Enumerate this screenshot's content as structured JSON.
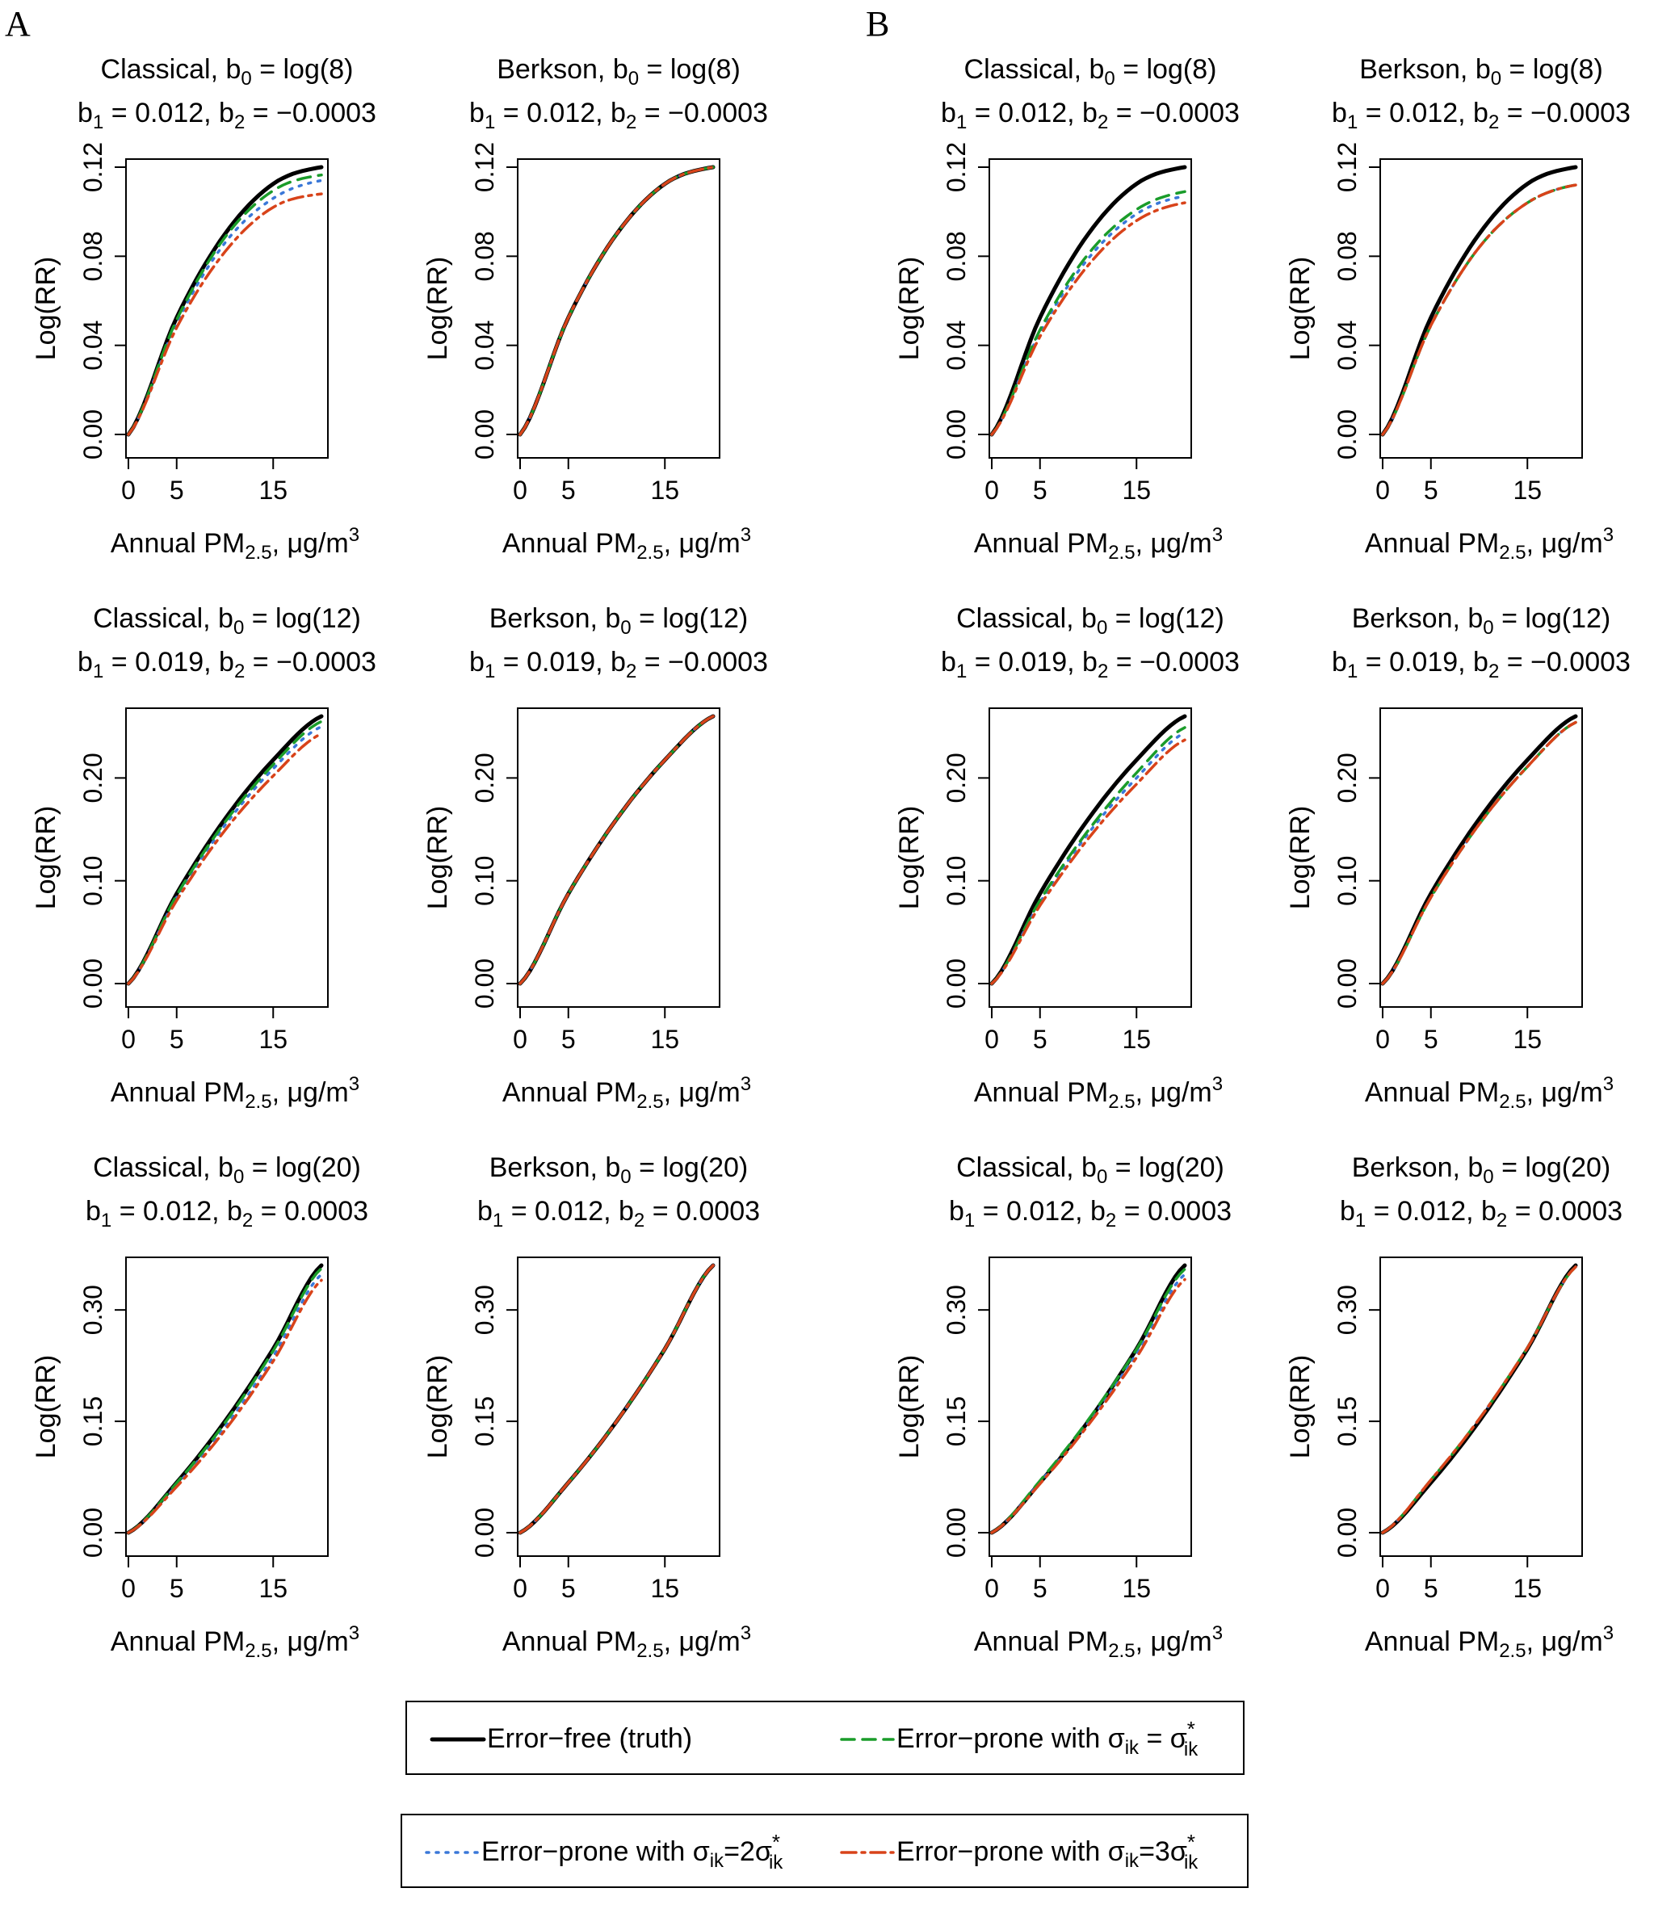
{
  "figure": {
    "panel_letters": [
      "A",
      "B"
    ],
    "xlabel": {
      "main": "Annual PM",
      "sub": "2.5",
      "unit": ", μg/m",
      "sup": "3"
    },
    "ylabel": "Log(RR)"
  },
  "legend": [
    {
      "key": "truth",
      "label": "Error−free (truth)",
      "color": "#000000"
    },
    {
      "key": "sigma1",
      "label": "Error−prone with σ",
      "sub": "ik",
      "rel": " = σ",
      "sup": "*",
      "sub2": "ik",
      "color": "#1a9c2a"
    },
    {
      "key": "sigma2",
      "label": "Error−prone with σ",
      "sub": "ik",
      "rel": "=2σ",
      "sup": "*",
      "sub2": "ik",
      "color": "#3a78d8"
    },
    {
      "key": "sigma3",
      "label": "Error−prone with σ",
      "sub": "ik",
      "rel": "=3σ",
      "sup": "*",
      "sub2": "ik",
      "color": "#d8431a"
    }
  ],
  "chart_data": [
    {
      "panel": "A",
      "type": "line",
      "title1": {
        "model": "Classical,",
        "b0": "log(8)"
      },
      "title2": {
        "b1": "0.012",
        "b2": "−0.0003"
      },
      "xticks": [
        "0",
        "5",
        "15"
      ],
      "yticks": [
        "0.00",
        "0.04",
        "0.08",
        "0.12"
      ],
      "xlim": [
        0,
        20
      ],
      "ylim": [
        0,
        0.12
      ],
      "series": [
        {
          "key": "truth",
          "x": [
            0,
            5,
            10,
            15,
            20
          ],
          "values": [
            0,
            0.0525,
            0.09,
            0.1125,
            0.12
          ]
        },
        {
          "key": "sigma1",
          "x": [
            0,
            5,
            10,
            15,
            20
          ],
          "values": [
            0,
            0.0515,
            0.0885,
            0.1095,
            0.1165
          ]
        },
        {
          "key": "sigma2",
          "x": [
            0,
            5,
            10,
            15,
            20
          ],
          "values": [
            0,
            0.05,
            0.086,
            0.106,
            0.114
          ]
        },
        {
          "key": "sigma3",
          "x": [
            0,
            5,
            10,
            15,
            20
          ],
          "values": [
            0,
            0.048,
            0.082,
            0.102,
            0.108
          ]
        }
      ]
    },
    {
      "panel": "A",
      "type": "line",
      "title1": {
        "model": "Berkson,",
        "b0": "log(8)"
      },
      "title2": {
        "b1": "0.012",
        "b2": "−0.0003"
      },
      "xticks": [
        "0",
        "5",
        "15"
      ],
      "yticks": [
        "0.00",
        "0.04",
        "0.08",
        "0.12"
      ],
      "xlim": [
        0,
        20
      ],
      "ylim": [
        0,
        0.12
      ],
      "series": [
        {
          "key": "truth",
          "x": [
            0,
            5,
            10,
            15,
            20
          ],
          "values": [
            0,
            0.0525,
            0.09,
            0.1125,
            0.12
          ]
        },
        {
          "key": "sigma1",
          "x": [
            0,
            5,
            10,
            15,
            20
          ],
          "values": [
            0,
            0.0525,
            0.09,
            0.1125,
            0.12
          ]
        },
        {
          "key": "sigma2",
          "x": [
            0,
            5,
            10,
            15,
            20
          ],
          "values": [
            0,
            0.0525,
            0.09,
            0.1125,
            0.12
          ]
        },
        {
          "key": "sigma3",
          "x": [
            0,
            5,
            10,
            15,
            20
          ],
          "values": [
            0,
            0.0525,
            0.09,
            0.1125,
            0.12
          ]
        }
      ]
    },
    {
      "panel": "B",
      "type": "line",
      "title1": {
        "model": "Classical,",
        "b0": "log(8)"
      },
      "title2": {
        "b1": "0.012",
        "b2": "−0.0003"
      },
      "xticks": [
        "0",
        "5",
        "15"
      ],
      "yticks": [
        "0.00",
        "0.04",
        "0.08",
        "0.12"
      ],
      "xlim": [
        0,
        20
      ],
      "ylim": [
        0,
        0.12
      ],
      "series": [
        {
          "key": "truth",
          "x": [
            0,
            5,
            10,
            15,
            20
          ],
          "values": [
            0,
            0.0525,
            0.09,
            0.1125,
            0.12
          ]
        },
        {
          "key": "sigma1",
          "x": [
            0,
            5,
            10,
            15,
            20
          ],
          "values": [
            0,
            0.047,
            0.081,
            0.101,
            0.109
          ]
        },
        {
          "key": "sigma2",
          "x": [
            0,
            5,
            10,
            15,
            20
          ],
          "values": [
            0,
            0.046,
            0.079,
            0.099,
            0.107
          ]
        },
        {
          "key": "sigma3",
          "x": [
            0,
            5,
            10,
            15,
            20
          ],
          "values": [
            0,
            0.044,
            0.076,
            0.096,
            0.104
          ]
        }
      ]
    },
    {
      "panel": "B",
      "type": "line",
      "title1": {
        "model": "Berkson,",
        "b0": "log(8)"
      },
      "title2": {
        "b1": "0.012",
        "b2": "−0.0003"
      },
      "xticks": [
        "0",
        "5",
        "15"
      ],
      "yticks": [
        "0.00",
        "0.04",
        "0.08",
        "0.12"
      ],
      "xlim": [
        0,
        20
      ],
      "ylim": [
        0,
        0.12
      ],
      "series": [
        {
          "key": "truth",
          "x": [
            0,
            5,
            10,
            15,
            20
          ],
          "values": [
            0,
            0.0525,
            0.09,
            0.1125,
            0.12
          ]
        },
        {
          "key": "sigma1",
          "x": [
            0,
            5,
            10,
            15,
            20
          ],
          "values": [
            0,
            0.049,
            0.084,
            0.104,
            0.112
          ]
        },
        {
          "key": "sigma2",
          "x": [
            0,
            5,
            10,
            15,
            20
          ],
          "values": [
            0,
            0.049,
            0.084,
            0.104,
            0.112
          ]
        },
        {
          "key": "sigma3",
          "x": [
            0,
            5,
            10,
            15,
            20
          ],
          "values": [
            0,
            0.049,
            0.084,
            0.104,
            0.112
          ]
        }
      ]
    },
    {
      "panel": "A",
      "type": "line",
      "title1": {
        "model": "Classical,",
        "b0": "log(12)"
      },
      "title2": {
        "b1": "0.019",
        "b2": "−0.0003"
      },
      "xticks": [
        "0",
        "5",
        "15"
      ],
      "yticks": [
        "0.00",
        "0.10",
        "0.20"
      ],
      "xlim": [
        0,
        20
      ],
      "ylim": [
        0,
        0.26
      ],
      "series": [
        {
          "key": "truth",
          "x": [
            0,
            5,
            10,
            15,
            20
          ],
          "values": [
            0,
            0.0875,
            0.16,
            0.2175,
            0.26
          ]
        },
        {
          "key": "sigma1",
          "x": [
            0,
            5,
            10,
            15,
            20
          ],
          "values": [
            0,
            0.086,
            0.157,
            0.213,
            0.255
          ]
        },
        {
          "key": "sigma2",
          "x": [
            0,
            5,
            10,
            15,
            20
          ],
          "values": [
            0,
            0.084,
            0.154,
            0.209,
            0.25
          ]
        },
        {
          "key": "sigma3",
          "x": [
            0,
            5,
            10,
            15,
            20
          ],
          "values": [
            0,
            0.081,
            0.149,
            0.202,
            0.243
          ]
        }
      ]
    },
    {
      "panel": "A",
      "type": "line",
      "title1": {
        "model": "Berkson,",
        "b0": "log(12)"
      },
      "title2": {
        "b1": "0.019",
        "b2": "−0.0003"
      },
      "xticks": [
        "0",
        "5",
        "15"
      ],
      "yticks": [
        "0.00",
        "0.10",
        "0.20"
      ],
      "xlim": [
        0,
        20
      ],
      "ylim": [
        0,
        0.26
      ],
      "series": [
        {
          "key": "truth",
          "x": [
            0,
            5,
            10,
            15,
            20
          ],
          "values": [
            0,
            0.0875,
            0.16,
            0.2175,
            0.26
          ]
        },
        {
          "key": "sigma1",
          "x": [
            0,
            5,
            10,
            15,
            20
          ],
          "values": [
            0,
            0.0875,
            0.16,
            0.2175,
            0.26
          ]
        },
        {
          "key": "sigma2",
          "x": [
            0,
            5,
            10,
            15,
            20
          ],
          "values": [
            0,
            0.0875,
            0.16,
            0.2175,
            0.26
          ]
        },
        {
          "key": "sigma3",
          "x": [
            0,
            5,
            10,
            15,
            20
          ],
          "values": [
            0,
            0.0875,
            0.16,
            0.2175,
            0.26
          ]
        }
      ]
    },
    {
      "panel": "B",
      "type": "line",
      "title1": {
        "model": "Classical,",
        "b0": "log(12)"
      },
      "title2": {
        "b1": "0.019",
        "b2": "−0.0003"
      },
      "xticks": [
        "0",
        "5",
        "15"
      ],
      "yticks": [
        "0.00",
        "0.10",
        "0.20"
      ],
      "xlim": [
        0,
        20
      ],
      "ylim": [
        0,
        0.26
      ],
      "series": [
        {
          "key": "truth",
          "x": [
            0,
            5,
            10,
            15,
            20
          ],
          "values": [
            0,
            0.0875,
            0.16,
            0.2175,
            0.26
          ]
        },
        {
          "key": "sigma1",
          "x": [
            0,
            5,
            10,
            15,
            20
          ],
          "values": [
            0,
            0.081,
            0.149,
            0.205,
            0.249
          ]
        },
        {
          "key": "sigma2",
          "x": [
            0,
            5,
            10,
            15,
            20
          ],
          "values": [
            0,
            0.079,
            0.146,
            0.2,
            0.244
          ]
        },
        {
          "key": "sigma3",
          "x": [
            0,
            5,
            10,
            15,
            20
          ],
          "values": [
            0,
            0.076,
            0.141,
            0.194,
            0.237
          ]
        }
      ]
    },
    {
      "panel": "B",
      "type": "line",
      "title1": {
        "model": "Berkson,",
        "b0": "log(12)"
      },
      "title2": {
        "b1": "0.019",
        "b2": "−0.0003"
      },
      "xticks": [
        "0",
        "5",
        "15"
      ],
      "yticks": [
        "0.00",
        "0.10",
        "0.20"
      ],
      "xlim": [
        0,
        20
      ],
      "ylim": [
        0,
        0.26
      ],
      "series": [
        {
          "key": "truth",
          "x": [
            0,
            5,
            10,
            15,
            20
          ],
          "values": [
            0,
            0.0875,
            0.16,
            0.2175,
            0.26
          ]
        },
        {
          "key": "sigma1",
          "x": [
            0,
            5,
            10,
            15,
            20
          ],
          "values": [
            0,
            0.084,
            0.155,
            0.211,
            0.254
          ]
        },
        {
          "key": "sigma2",
          "x": [
            0,
            5,
            10,
            15,
            20
          ],
          "values": [
            0,
            0.084,
            0.155,
            0.211,
            0.254
          ]
        },
        {
          "key": "sigma3",
          "x": [
            0,
            5,
            10,
            15,
            20
          ],
          "values": [
            0,
            0.084,
            0.155,
            0.211,
            0.254
          ]
        }
      ]
    },
    {
      "panel": "A",
      "type": "line",
      "title1": {
        "model": "Classical,",
        "b0": "log(20)"
      },
      "title2": {
        "b1": "0.012",
        "b2": "0.0003"
      },
      "xticks": [
        "0",
        "5",
        "15"
      ],
      "yticks": [
        "0.00",
        "0.15",
        "0.30"
      ],
      "xlim": [
        0,
        20
      ],
      "ylim": [
        0,
        0.36
      ],
      "series": [
        {
          "key": "truth",
          "x": [
            0,
            5,
            10,
            15,
            20
          ],
          "values": [
            0,
            0.0675,
            0.15,
            0.2475,
            0.36
          ]
        },
        {
          "key": "sigma1",
          "x": [
            0,
            5,
            10,
            15,
            20
          ],
          "values": [
            0,
            0.067,
            0.148,
            0.245,
            0.356
          ]
        },
        {
          "key": "sigma2",
          "x": [
            0,
            5,
            10,
            15,
            20
          ],
          "values": [
            0,
            0.064,
            0.142,
            0.237,
            0.348
          ]
        },
        {
          "key": "sigma3",
          "x": [
            0,
            5,
            10,
            15,
            20
          ],
          "values": [
            0,
            0.062,
            0.138,
            0.231,
            0.34
          ]
        }
      ]
    },
    {
      "panel": "A",
      "type": "line",
      "title1": {
        "model": "Berkson,",
        "b0": "log(20)"
      },
      "title2": {
        "b1": "0.012",
        "b2": "0.0003"
      },
      "xticks": [
        "0",
        "5",
        "15"
      ],
      "yticks": [
        "0.00",
        "0.15",
        "0.30"
      ],
      "xlim": [
        0,
        20
      ],
      "ylim": [
        0,
        0.36
      ],
      "series": [
        {
          "key": "truth",
          "x": [
            0,
            5,
            10,
            15,
            20
          ],
          "values": [
            0,
            0.0675,
            0.15,
            0.2475,
            0.36
          ]
        },
        {
          "key": "sigma1",
          "x": [
            0,
            5,
            10,
            15,
            20
          ],
          "values": [
            0,
            0.0675,
            0.15,
            0.2475,
            0.36
          ]
        },
        {
          "key": "sigma2",
          "x": [
            0,
            5,
            10,
            15,
            20
          ],
          "values": [
            0,
            0.0675,
            0.15,
            0.2475,
            0.36
          ]
        },
        {
          "key": "sigma3",
          "x": [
            0,
            5,
            10,
            15,
            20
          ],
          "values": [
            0,
            0.0675,
            0.15,
            0.2475,
            0.36
          ]
        }
      ]
    },
    {
      "panel": "B",
      "type": "line",
      "title1": {
        "model": "Classical,",
        "b0": "log(20)"
      },
      "title2": {
        "b1": "0.012",
        "b2": "0.0003"
      },
      "xticks": [
        "0",
        "5",
        "15"
      ],
      "yticks": [
        "0.00",
        "0.15",
        "0.30"
      ],
      "xlim": [
        0,
        20
      ],
      "ylim": [
        0,
        0.36
      ],
      "series": [
        {
          "key": "truth",
          "x": [
            0,
            5,
            10,
            15,
            20
          ],
          "values": [
            0,
            0.0675,
            0.15,
            0.2475,
            0.36
          ]
        },
        {
          "key": "sigma1",
          "x": [
            0,
            5,
            10,
            15,
            20
          ],
          "values": [
            0,
            0.07,
            0.152,
            0.247,
            0.355
          ]
        },
        {
          "key": "sigma2",
          "x": [
            0,
            5,
            10,
            15,
            20
          ],
          "values": [
            0,
            0.068,
            0.148,
            0.241,
            0.348
          ]
        },
        {
          "key": "sigma3",
          "x": [
            0,
            5,
            10,
            15,
            20
          ],
          "values": [
            0,
            0.066,
            0.145,
            0.236,
            0.341
          ]
        }
      ]
    },
    {
      "panel": "B",
      "type": "line",
      "title1": {
        "model": "Berkson,",
        "b0": "log(20)"
      },
      "title2": {
        "b1": "0.012",
        "b2": "0.0003"
      },
      "xticks": [
        "0",
        "5",
        "15"
      ],
      "yticks": [
        "0.00",
        "0.15",
        "0.30"
      ],
      "xlim": [
        0,
        20
      ],
      "ylim": [
        0,
        0.36
      ],
      "series": [
        {
          "key": "truth",
          "x": [
            0,
            5,
            10,
            15,
            20
          ],
          "values": [
            0,
            0.0675,
            0.15,
            0.2475,
            0.36
          ]
        },
        {
          "key": "sigma1",
          "x": [
            0,
            5,
            10,
            15,
            20
          ],
          "values": [
            0,
            0.071,
            0.153,
            0.249,
            0.358
          ]
        },
        {
          "key": "sigma2",
          "x": [
            0,
            5,
            10,
            15,
            20
          ],
          "values": [
            0,
            0.071,
            0.153,
            0.249,
            0.358
          ]
        },
        {
          "key": "sigma3",
          "x": [
            0,
            5,
            10,
            15,
            20
          ],
          "values": [
            0,
            0.071,
            0.153,
            0.249,
            0.358
          ]
        }
      ]
    }
  ]
}
